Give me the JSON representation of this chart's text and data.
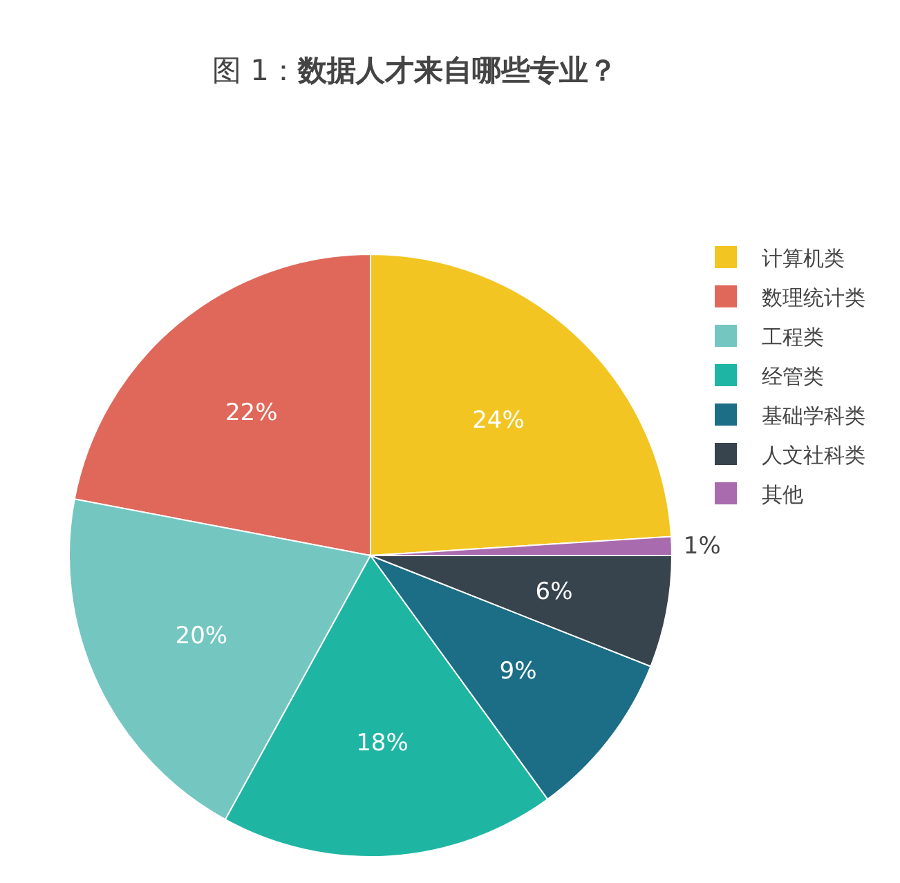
{
  "chart_data": {
    "type": "pie",
    "title": "图 1：**数据人才来自哪些专业？**",
    "categories": [
      "计算机类",
      "数理统计类",
      "工程类",
      "经管类",
      "基础学科类",
      "人文社科类",
      "其他"
    ],
    "values": [
      24,
      22,
      20,
      18,
      9,
      6,
      1
    ],
    "colors": [
      "#f2c523",
      "#e0685a",
      "#74c7c0",
      "#1fb5a3",
      "#1b6e86",
      "#37434d",
      "#a86bae"
    ],
    "value_labels": [
      "24%",
      "22%",
      "20%",
      "18%",
      "9%",
      "6%",
      "1%"
    ],
    "legend": "right"
  }
}
